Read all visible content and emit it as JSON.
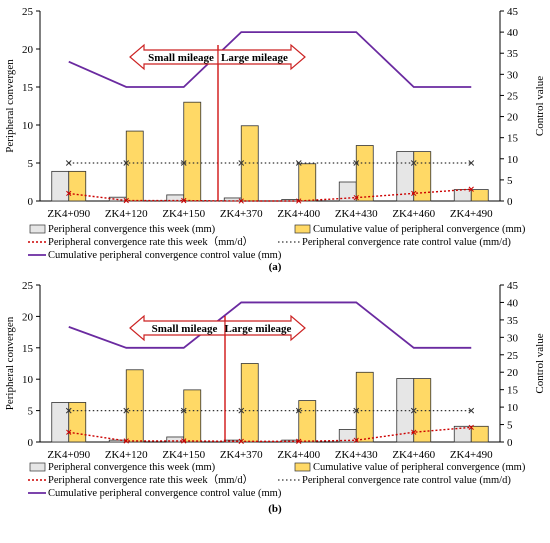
{
  "colors": {
    "weekly_bar": "#e6e6e6",
    "cumulative_bar": "#ffd966",
    "bar_stroke": "#333333",
    "rate_line": "#cc0000",
    "control_rate_line": "#333333",
    "cum_control_line": "#6a2aa0",
    "arrow_outline": "#cc2222",
    "divider_line": "#cc0000"
  },
  "charts": [
    {
      "panel_label": "(a)",
      "left_axis_label": "Peripheral convergen",
      "right_axis_label": "Control value",
      "arrow_left_label": "Small mileage",
      "arrow_right_label": "Large mileage",
      "legend": {
        "weekly": "Peripheral convergence this week (mm)",
        "cumulative": "Cumulative value of peripheral convergence (mm)",
        "rate": "Peripheral convergence rate this week（mm/d）",
        "rate_control": "Peripheral convergence rate control value (mm/d)",
        "cum_control": "Cumulative peripheral convergence control value (mm)"
      }
    },
    {
      "panel_label": "(b)",
      "left_axis_label": "Peripheral convergen",
      "right_axis_label": "Control value",
      "arrow_left_label": "Small mileage",
      "arrow_right_label": "Large mileage",
      "legend": {
        "weekly": "Peripheral convergence this week (mm)",
        "cumulative": "Cumulative value of peripheral convergence (mm)",
        "rate": "Peripheral convergence rate this week（mm/d）",
        "rate_control": "Peripheral convergence rate control value (mm/d)",
        "cum_control": "Cumulative peripheral convergence control value (mm)"
      }
    }
  ],
  "chart_data": [
    {
      "type": "bar",
      "categories": [
        "ZK4+090",
        "ZK4+120",
        "ZK4+150",
        "ZK4+370",
        "ZK4+400",
        "ZK4+430",
        "ZK4+460",
        "ZK4+490"
      ],
      "y_left_lim": [
        0,
        25
      ],
      "y_left_ticks": [
        0,
        5,
        10,
        15,
        20,
        25
      ],
      "y_right_lim": [
        0,
        45
      ],
      "y_right_ticks": [
        0,
        5,
        10,
        15,
        20,
        25,
        30,
        35,
        40,
        45
      ],
      "series": [
        {
          "name": "Peripheral convergence this week (mm)",
          "type": "bar",
          "axis": "left",
          "values": [
            3.9,
            0.5,
            0.8,
            0.4,
            0.2,
            2.5,
            6.5,
            1.5
          ]
        },
        {
          "name": "Cumulative value of peripheral convergence (mm)",
          "type": "bar",
          "axis": "left",
          "values": [
            3.9,
            9.2,
            13.0,
            9.9,
            4.9,
            7.3,
            6.5,
            1.5
          ]
        },
        {
          "name": "Peripheral convergence rate this week（mm/d）",
          "type": "line",
          "axis": "right",
          "values": [
            1.8,
            0.1,
            0.1,
            0.0,
            0.0,
            0.8,
            1.8,
            2.8
          ]
        },
        {
          "name": "Peripheral convergence rate control value (mm/d)",
          "type": "line",
          "axis": "right",
          "values": [
            9,
            9,
            9,
            9,
            9,
            9,
            9,
            9
          ]
        },
        {
          "name": "Cumulative peripheral convergence control value (mm)",
          "type": "line",
          "axis": "right",
          "values": [
            33,
            27,
            27,
            40,
            40,
            40,
            27,
            27
          ]
        }
      ]
    },
    {
      "type": "bar",
      "categories": [
        "ZK4+090",
        "ZK4+120",
        "ZK4+150",
        "ZK4+370",
        "ZK4+400",
        "ZK4+430",
        "ZK4+460",
        "ZK4+490"
      ],
      "y_left_lim": [
        0,
        25
      ],
      "y_left_ticks": [
        0,
        5,
        10,
        15,
        20,
        25
      ],
      "y_right_lim": [
        0,
        45
      ],
      "y_right_ticks": [
        0,
        5,
        10,
        15,
        20,
        25,
        30,
        35,
        40,
        45
      ],
      "series": [
        {
          "name": "Peripheral convergence this week (mm)",
          "type": "bar",
          "axis": "left",
          "values": [
            6.3,
            0.3,
            0.8,
            0.3,
            0.3,
            2.0,
            10.1,
            2.5
          ]
        },
        {
          "name": "Cumulative value of peripheral convergence (mm)",
          "type": "bar",
          "axis": "left",
          "values": [
            6.3,
            11.5,
            8.3,
            12.5,
            6.6,
            11.1,
            10.1,
            2.5
          ]
        },
        {
          "name": "Peripheral convergence rate this week（mm/d）",
          "type": "line",
          "axis": "right",
          "values": [
            2.8,
            0.3,
            0.3,
            0.2,
            0.2,
            0.5,
            2.8,
            4.2
          ]
        },
        {
          "name": "Peripheral convergence rate control value (mm/d)",
          "type": "line",
          "axis": "right",
          "values": [
            9,
            9,
            9,
            9,
            9,
            9,
            9,
            9
          ]
        },
        {
          "name": "Cumulative peripheral convergence control value (mm)",
          "type": "line",
          "axis": "right",
          "values": [
            33,
            27,
            27,
            40,
            40,
            40,
            27,
            27
          ]
        }
      ]
    }
  ]
}
